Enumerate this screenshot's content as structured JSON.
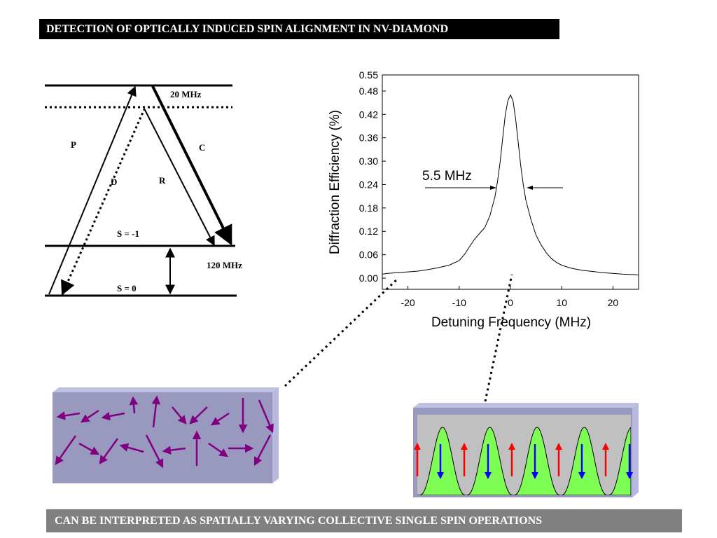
{
  "title": "DETECTION OF OPTICALLY INDUCED SPIN ALIGNMENT IN NV-DIAMOND",
  "footer": "CAN BE INTERPRETED AS  SPATIALLY VARYING COLLECTIVE SINGLE SPIN OPERATIONS",
  "energy_diagram": {
    "splitting_upper": "20 MHz",
    "splitting_lower": "120 MHz",
    "label_p": "P",
    "label_c": "C",
    "label_d": "D",
    "label_r": "R",
    "state_minus1": "S = -1",
    "state_0": "S = 0"
  },
  "chart_data": {
    "type": "line",
    "title": "",
    "xlabel": "Detuning Frequency (MHz)",
    "ylabel": "Diffraction Efficiency (%)",
    "xlim": [
      -25,
      25
    ],
    "ylim": [
      0,
      0.55
    ],
    "xticks": [
      "-20",
      "-10",
      "0",
      "10",
      "20"
    ],
    "yticks": [
      "0.00",
      "0.06",
      "0.12",
      "0.18",
      "0.24",
      "0.30",
      "0.36",
      "0.42",
      "0.48",
      "0.55"
    ],
    "annotation": "5.5 MHz",
    "series": [
      {
        "x": [
          -25,
          -24,
          -22,
          -20,
          -18,
          -16,
          -14,
          -12,
          -10,
          -9,
          -8,
          -7,
          -6,
          -5,
          -4,
          -3,
          -2.5,
          -2,
          -1.5,
          -1,
          -0.5,
          0,
          0.5,
          1,
          1.5,
          2,
          2.5,
          3,
          4,
          5,
          6,
          7,
          8,
          9,
          10,
          12,
          14,
          16,
          18,
          20,
          22,
          24,
          25
        ],
        "y": [
          0.01,
          0.012,
          0.014,
          0.016,
          0.018,
          0.022,
          0.027,
          0.033,
          0.045,
          0.06,
          0.08,
          0.1,
          0.115,
          0.13,
          0.16,
          0.21,
          0.25,
          0.3,
          0.36,
          0.42,
          0.455,
          0.47,
          0.455,
          0.41,
          0.35,
          0.29,
          0.24,
          0.2,
          0.15,
          0.11,
          0.085,
          0.065,
          0.05,
          0.04,
          0.033,
          0.025,
          0.02,
          0.017,
          0.014,
          0.012,
          0.01,
          0.009,
          0.008
        ]
      }
    ]
  }
}
